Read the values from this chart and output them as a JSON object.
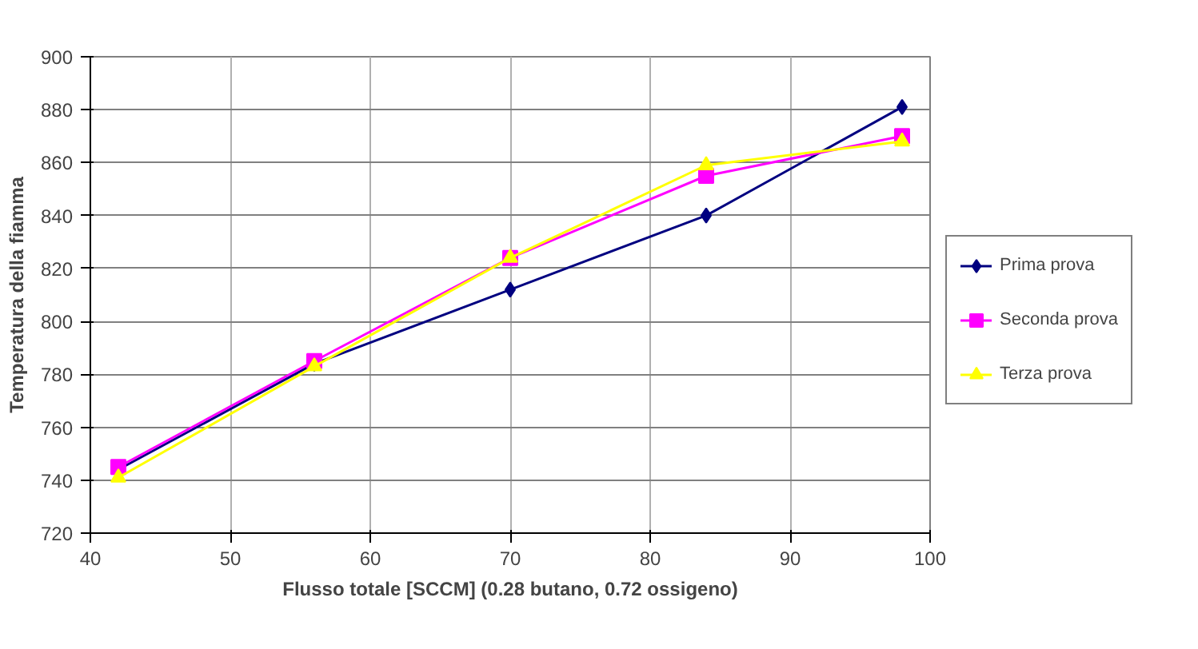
{
  "chart_data": {
    "type": "line",
    "xlabel": "Flusso totale [SCCM] (0.28 butano, 0.72 ossigeno)",
    "ylabel": "Temperatura della fiamma",
    "x": [
      42,
      56,
      70,
      84,
      98
    ],
    "series": [
      {
        "name": "Prima prova",
        "color": "#000080",
        "marker": "diamond",
        "values": [
          744,
          784,
          812,
          840,
          881
        ]
      },
      {
        "name": "Seconda prova",
        "color": "#ff00ff",
        "marker": "square",
        "values": [
          745,
          785,
          824,
          855,
          870
        ]
      },
      {
        "name": "Terza prova",
        "color": "#ffff00",
        "marker": "triangle",
        "values": [
          741,
          783,
          824,
          859,
          868
        ]
      }
    ],
    "xlim": [
      40,
      100
    ],
    "xticks": [
      40,
      50,
      60,
      70,
      80,
      90,
      100
    ],
    "ylim": [
      720,
      900
    ],
    "yticks": [
      720,
      740,
      760,
      780,
      800,
      820,
      840,
      860,
      880,
      900
    ],
    "grid": true,
    "legend": "right"
  }
}
